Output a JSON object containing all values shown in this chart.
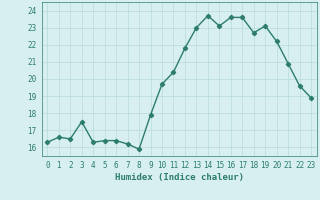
{
  "x": [
    0,
    1,
    2,
    3,
    4,
    5,
    6,
    7,
    8,
    9,
    10,
    11,
    12,
    13,
    14,
    15,
    16,
    17,
    18,
    19,
    20,
    21,
    22,
    23
  ],
  "y": [
    16.3,
    16.6,
    16.5,
    17.5,
    16.3,
    16.4,
    16.4,
    16.2,
    15.9,
    17.9,
    19.7,
    20.4,
    21.8,
    23.0,
    23.7,
    23.1,
    23.6,
    23.6,
    22.7,
    23.1,
    22.2,
    20.9,
    19.6,
    18.9
  ],
  "line_color": "#2d7d6f",
  "marker": "D",
  "marker_size": 2.2,
  "bg_color": "#d7eff0",
  "grid_color": "#b8dada",
  "xlabel": "Humidex (Indice chaleur)",
  "ylim": [
    15.5,
    24.5
  ],
  "xlim": [
    -0.5,
    23.5
  ],
  "yticks": [
    16,
    17,
    18,
    19,
    20,
    21,
    22,
    23,
    24
  ],
  "xticks": [
    0,
    1,
    2,
    3,
    4,
    5,
    6,
    7,
    8,
    9,
    10,
    11,
    12,
    13,
    14,
    15,
    16,
    17,
    18,
    19,
    20,
    21,
    22,
    23
  ],
  "tick_color": "#2d7d6f",
  "label_color": "#2d7d6f",
  "linewidth": 1.0,
  "tick_fontsize": 5.5,
  "xlabel_fontsize": 6.5
}
